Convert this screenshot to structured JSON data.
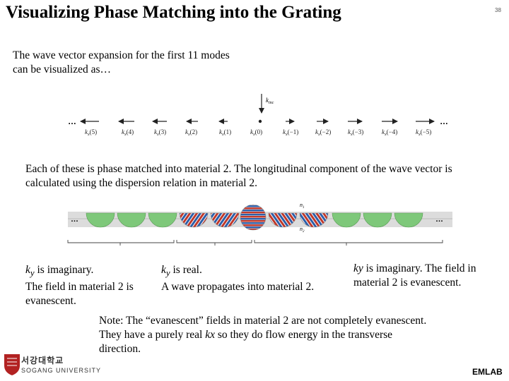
{
  "slide": {
    "title": "Visualizing Phase Matching into the Grating",
    "page_number": "38",
    "intro": "The wave vector expansion for the first 11 modes can be visualized as…",
    "dots": "…",
    "k_inc_label": "k",
    "k_inc_sub": "inc",
    "wave_vectors": [
      {
        "label": "k",
        "sub": "x",
        "arg": "(5)"
      },
      {
        "label": "k",
        "sub": "x",
        "arg": "(4)"
      },
      {
        "label": "k",
        "sub": "x",
        "arg": "(3)"
      },
      {
        "label": "k",
        "sub": "x",
        "arg": "(2)"
      },
      {
        "label": "k",
        "sub": "x",
        "arg": "(1)"
      },
      {
        "label": "k",
        "sub": "x",
        "arg": "(0)"
      },
      {
        "label": "k",
        "sub": "x",
        "arg": "(−1)"
      },
      {
        "label": "k",
        "sub": "x",
        "arg": "(−2)"
      },
      {
        "label": "k",
        "sub": "x",
        "arg": "(−3)"
      },
      {
        "label": "k",
        "sub": "x",
        "arg": "(−4)"
      },
      {
        "label": "k",
        "sub": "x",
        "arg": "(−5)"
      }
    ],
    "each_text": "Each of these is phase matched into material 2. The longitudinal component of the wave vector is calculated using the dispersion relation in material 2.",
    "n1_label": "n",
    "n1_sub": "1",
    "n2_label": "n",
    "n2_sub": "2",
    "col1": {
      "ky": "k",
      "ky_sub": "y",
      "line1": " is imaginary.",
      "line2": "The field in material 2 is evanescent."
    },
    "col2": {
      "ky": "k",
      "ky_sub": "y",
      "line1": " is real.",
      "line2": "A wave propagates into material 2."
    },
    "col3": {
      "ky": "ky",
      "text": " is imaginary. The field in material 2 is evanescent."
    },
    "note": {
      "part1": "Note: The “evanescent” fields in material 2 are not completely evanescent. They have a purely real ",
      "kx": "kx",
      "part2": " so they do flow energy in the transverse direction."
    },
    "logo": {
      "korean": "서강대학교",
      "english": "SOGANG UNIVERSITY"
    },
    "footer": "EMLAB"
  },
  "colors": {
    "green": "#7ec87a",
    "red": "#c0392b",
    "blue": "#2e5fa8",
    "grating_bg": "#dcdcdc",
    "logo_red": "#b22222"
  }
}
